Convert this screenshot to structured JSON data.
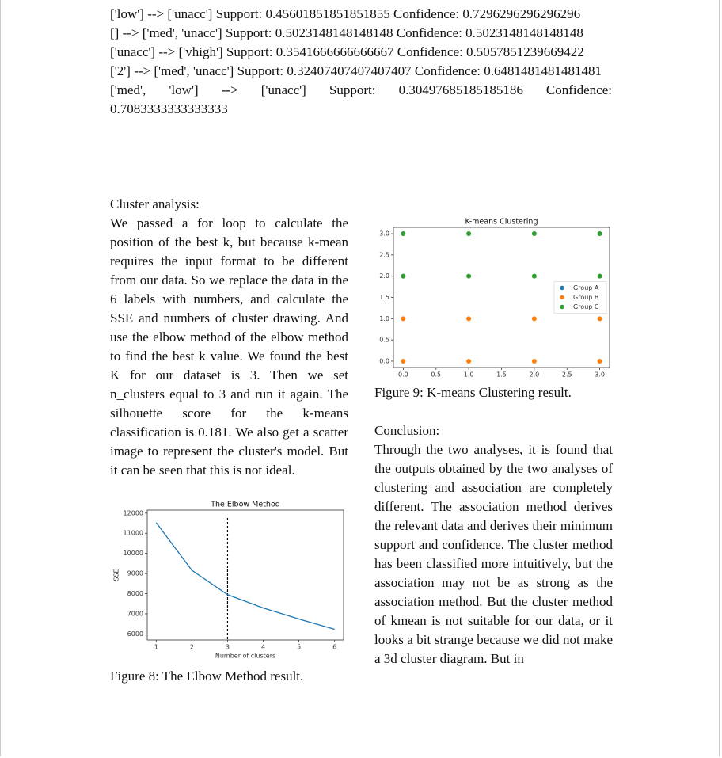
{
  "rules": [
    "['low'] --> ['unacc'] Support: 0.45601851851851855 Confidence: 0.7296296296296296",
    "[] --> ['med', 'unacc'] Support: 0.5023148148148148 Confidence: 0.5023148148148148",
    "['unacc'] --> ['vhigh'] Support: 0.3541666666666667 Confidence: 0.5057851239669422",
    "['2'] --> ['med', 'unacc'] Support: 0.32407407407407407 Confidence: 0.6481481481481481",
    "['med', 'low'] --> ['unacc'] Support: 0.30497685185185186 Confidence: 0.7083333333333333"
  ],
  "cluster_analysis": {
    "heading": "Cluster analysis:",
    "text": "We passed a for loop to calculate the position of the best k, but because k-mean requires the input format to be different from our data. So we replace the data in the 6 labels with numbers, and calculate the SSE and numbers of cluster drawing. And use the elbow method of the elbow method to find the best k value. We found the best K for our dataset is 3. Then we set n_clusters equal to 3 and run it again. The silhouette score for the k-means classification is 0.181. We also get a scatter image to represent the cluster's model. But it can be seen that this is not ideal."
  },
  "conclusion": {
    "heading": "Conclusion:",
    "text": "Through the two analyses, it is found that the outputs obtained by the two analyses of clustering and association are completely different. The association method derives the relevant data and derives their minimum support and confidence. The cluster method has been classified more intuitively, but the association may not be as strong as the association method. But the cluster method of kmean is not suitable for our data, or it looks a bit strange because we did not make a 3d cluster diagram. But in"
  },
  "figures": [
    {
      "caption": "Figure 8: The Elbow Method result."
    },
    {
      "caption": "Figure 9: K-means Clustering result."
    }
  ],
  "chart_data": [
    {
      "type": "line",
      "title": "The Elbow Method",
      "x_label": "Number of clusters",
      "y_label": "SSE",
      "x": [
        1,
        2,
        3,
        4,
        5,
        6
      ],
      "values": [
        11530,
        9160,
        7950,
        7290,
        6740,
        6230
      ],
      "color": "#1f77b4",
      "vline": 3,
      "xlim": [
        0.75,
        6.25
      ],
      "ylim": [
        5700,
        12150
      ],
      "xticks": [
        1,
        2,
        3,
        4,
        5,
        6
      ],
      "yticks": [
        6000,
        7000,
        8000,
        9000,
        10000,
        11000,
        12000
      ]
    },
    {
      "type": "scatter",
      "title": "K-means Clustering",
      "series": [
        {
          "name": "Group A",
          "color": "#1f77b4",
          "x": [],
          "y": []
        },
        {
          "name": "Group B",
          "color": "#ff7f0e",
          "x": [
            0,
            1,
            2,
            3,
            0,
            1,
            2,
            3
          ],
          "y": [
            1,
            1,
            1,
            1,
            0,
            0,
            0,
            0
          ]
        },
        {
          "name": "Group C",
          "color": "#2ca02c",
          "x": [
            0,
            1,
            2,
            3,
            0,
            1,
            2,
            3
          ],
          "y": [
            3,
            3,
            3,
            3,
            2,
            2,
            2,
            2
          ]
        }
      ],
      "legend": "center right",
      "xlim": [
        -0.15,
        3.15
      ],
      "ylim": [
        -0.15,
        3.15
      ],
      "xticks": [
        {
          "value": 0,
          "label": "0.0"
        },
        {
          "value": 0.5,
          "label": "0.5"
        },
        {
          "value": 1,
          "label": "1.0"
        },
        {
          "value": 1.5,
          "label": "1.5"
        },
        {
          "value": 2,
          "label": "2.0"
        },
        {
          "value": 2.5,
          "label": "2.5"
        },
        {
          "value": 3,
          "label": "3.0"
        }
      ],
      "yticks": [
        {
          "value": 0,
          "label": "0.0"
        },
        {
          "value": 0.5,
          "label": "0.5"
        },
        {
          "value": 1,
          "label": "1.0"
        },
        {
          "value": 1.5,
          "label": "1.5"
        },
        {
          "value": 2,
          "label": "2.0"
        },
        {
          "value": 2.5,
          "label": "2.5"
        },
        {
          "value": 3,
          "label": "3.0"
        }
      ]
    }
  ]
}
